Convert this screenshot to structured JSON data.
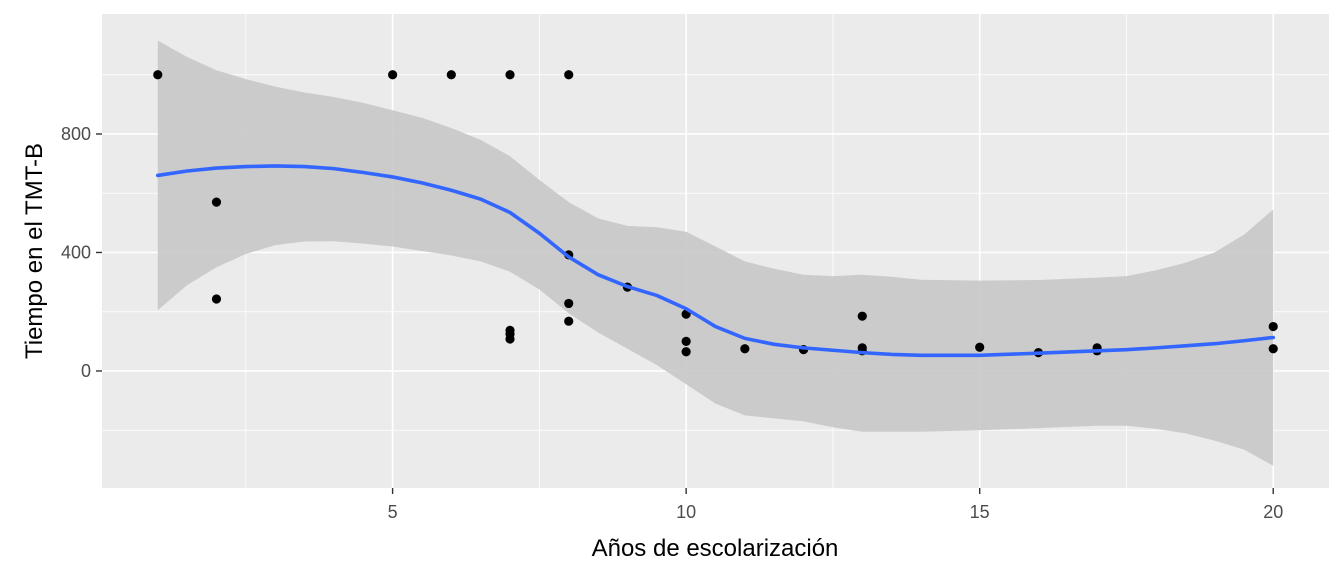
{
  "chart_data": {
    "type": "scatter",
    "title": "",
    "xlabel": "Años de escolarización",
    "ylabel": "Tiempo en el TMT-B",
    "xlim": [
      0.05,
      20.95
    ],
    "ylim": [
      -395,
      1205
    ],
    "x_ticks": [
      5,
      10,
      15,
      20
    ],
    "x_tick_labels": [
      "5",
      "10",
      "15",
      "20"
    ],
    "y_ticks": [
      0,
      400,
      800
    ],
    "y_tick_labels": [
      "0",
      "400",
      "800"
    ],
    "x_minor": [
      2.5,
      7.5,
      12.5,
      17.5
    ],
    "y_minor": [
      -200,
      200,
      600,
      1000
    ],
    "grid": true,
    "legend": "none",
    "colors": {
      "panel": "#ebebeb",
      "grid": "#ffffff",
      "points": "#000000",
      "smooth_line": "#3366ff",
      "ribbon": "#c8c8c8"
    },
    "points": [
      {
        "x": 1,
        "y": 1000
      },
      {
        "x": 2,
        "y": 570
      },
      {
        "x": 2,
        "y": 243
      },
      {
        "x": 5,
        "y": 1000
      },
      {
        "x": 6,
        "y": 1000
      },
      {
        "x": 7,
        "y": 1000
      },
      {
        "x": 7,
        "y": 137
      },
      {
        "x": 7,
        "y": 125
      },
      {
        "x": 7,
        "y": 108
      },
      {
        "x": 8,
        "y": 1000
      },
      {
        "x": 8,
        "y": 392
      },
      {
        "x": 8,
        "y": 228
      },
      {
        "x": 8,
        "y": 168
      },
      {
        "x": 9,
        "y": 283
      },
      {
        "x": 10,
        "y": 192
      },
      {
        "x": 10,
        "y": 100
      },
      {
        "x": 10,
        "y": 65
      },
      {
        "x": 11,
        "y": 75
      },
      {
        "x": 12,
        "y": 72
      },
      {
        "x": 13,
        "y": 185
      },
      {
        "x": 13,
        "y": 78
      },
      {
        "x": 13,
        "y": 68
      },
      {
        "x": 15,
        "y": 80
      },
      {
        "x": 16,
        "y": 62
      },
      {
        "x": 17,
        "y": 78
      },
      {
        "x": 17,
        "y": 68
      },
      {
        "x": 20,
        "y": 150
      },
      {
        "x": 20,
        "y": 75
      }
    ],
    "smooth": [
      {
        "x": 1,
        "y": 660,
        "ymin": 205,
        "ymax": 1115
      },
      {
        "x": 1.5,
        "y": 675,
        "ymin": 290,
        "ymax": 1060
      },
      {
        "x": 2,
        "y": 685,
        "ymin": 350,
        "ymax": 1015
      },
      {
        "x": 2.5,
        "y": 690,
        "ymin": 395,
        "ymax": 985
      },
      {
        "x": 3,
        "y": 692,
        "ymin": 425,
        "ymax": 960
      },
      {
        "x": 3.5,
        "y": 690,
        "ymin": 437,
        "ymax": 940
      },
      {
        "x": 4,
        "y": 683,
        "ymin": 438,
        "ymax": 925
      },
      {
        "x": 4.5,
        "y": 670,
        "ymin": 430,
        "ymax": 905
      },
      {
        "x": 5,
        "y": 655,
        "ymin": 420,
        "ymax": 880
      },
      {
        "x": 5.5,
        "y": 635,
        "ymin": 405,
        "ymax": 855
      },
      {
        "x": 6,
        "y": 610,
        "ymin": 390,
        "ymax": 820
      },
      {
        "x": 6.5,
        "y": 580,
        "ymin": 370,
        "ymax": 780
      },
      {
        "x": 7,
        "y": 535,
        "ymin": 335,
        "ymax": 725
      },
      {
        "x": 7.5,
        "y": 465,
        "ymin": 275,
        "ymax": 645
      },
      {
        "x": 8,
        "y": 385,
        "ymin": 195,
        "ymax": 570
      },
      {
        "x": 8.5,
        "y": 325,
        "ymin": 130,
        "ymax": 515
      },
      {
        "x": 9,
        "y": 285,
        "ymin": 75,
        "ymax": 490
      },
      {
        "x": 9.5,
        "y": 255,
        "ymin": 20,
        "ymax": 485
      },
      {
        "x": 10,
        "y": 210,
        "ymin": -45,
        "ymax": 470
      },
      {
        "x": 10.5,
        "y": 150,
        "ymin": -110,
        "ymax": 420
      },
      {
        "x": 11,
        "y": 110,
        "ymin": -150,
        "ymax": 370
      },
      {
        "x": 11.5,
        "y": 90,
        "ymin": -160,
        "ymax": 345
      },
      {
        "x": 12,
        "y": 78,
        "ymin": -170,
        "ymax": 325
      },
      {
        "x": 12.5,
        "y": 70,
        "ymin": -190,
        "ymax": 320
      },
      {
        "x": 13,
        "y": 62,
        "ymin": -205,
        "ymax": 325
      },
      {
        "x": 13.5,
        "y": 56,
        "ymin": -205,
        "ymax": 318
      },
      {
        "x": 14,
        "y": 53,
        "ymin": -205,
        "ymax": 308
      },
      {
        "x": 15,
        "y": 53,
        "ymin": -200,
        "ymax": 305
      },
      {
        "x": 16,
        "y": 60,
        "ymin": -193,
        "ymax": 307
      },
      {
        "x": 17,
        "y": 68,
        "ymin": -185,
        "ymax": 315
      },
      {
        "x": 17.5,
        "y": 72,
        "ymin": -185,
        "ymax": 320
      },
      {
        "x": 18,
        "y": 78,
        "ymin": -195,
        "ymax": 340
      },
      {
        "x": 18.5,
        "y": 85,
        "ymin": -210,
        "ymax": 365
      },
      {
        "x": 19,
        "y": 92,
        "ymin": -235,
        "ymax": 400
      },
      {
        "x": 19.5,
        "y": 102,
        "ymin": -265,
        "ymax": 460
      },
      {
        "x": 20,
        "y": 113,
        "ymin": -320,
        "ymax": 545
      }
    ]
  }
}
